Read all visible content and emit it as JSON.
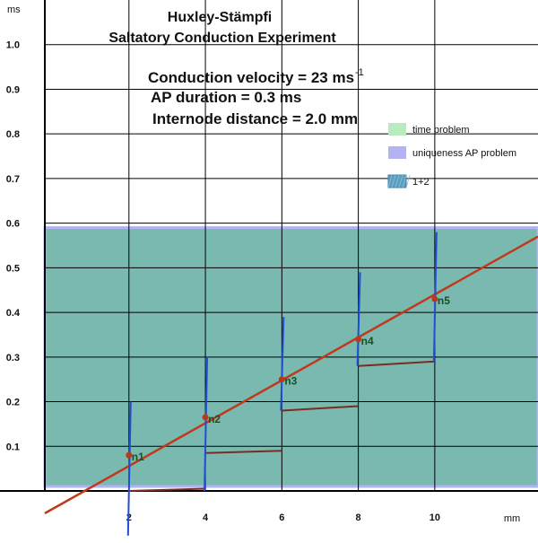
{
  "chart_data": {
    "type": "line",
    "title": "Huxley-Stämpfi",
    "subtitle": "Saltatory Conduction Experiment",
    "annotations": [
      "Conduction velocity = 23 ms",
      "AP duration = 0.3 ms",
      "Internode distance = 2.0 mm"
    ],
    "annotation_superscript": "-1",
    "xlabel": "mm",
    "ylabel": "ms",
    "xlim": [
      -0.2,
      12.7
    ],
    "ylim": [
      0,
      1.1
    ],
    "x_ticks": [
      "2",
      "4",
      "6",
      "8",
      "10"
    ],
    "y_ticks": [
      "0.1",
      "0.2",
      "0.3",
      "0.4",
      "0.5",
      "0.6",
      "0.7",
      "0.8",
      "0.9",
      "1.0"
    ],
    "grid": true,
    "legend_position": "top-right",
    "legend": [
      {
        "label": "time problem",
        "color": "#b8ecbf"
      },
      {
        "label": "uniqueness AP problem",
        "color": "#b3b3f3"
      },
      {
        "label": "1+2",
        "color": "#5b9fc0"
      }
    ],
    "shaded_region": {
      "x": [
        -0.2,
        12.7
      ],
      "y": [
        0.01,
        0.59
      ],
      "color": "#7ab9b0",
      "border": "#b3b3f3"
    },
    "conduction_line": {
      "x": [
        -0.2,
        12.7
      ],
      "y": [
        -0.05,
        0.57
      ],
      "color": "#c0391b"
    },
    "nodes": [
      {
        "label": "n1",
        "x": 2,
        "y": 0.08
      },
      {
        "label": "n2",
        "x": 4,
        "y": 0.165
      },
      {
        "label": "n3",
        "x": 6,
        "y": 0.25
      },
      {
        "label": "n4",
        "x": 8,
        "y": 0.34
      },
      {
        "label": "n5",
        "x": 10,
        "y": 0.43
      }
    ],
    "vertical_spikes": [
      {
        "x": 2,
        "y": [
          -0.1,
          0.2
        ]
      },
      {
        "x": 4,
        "y": [
          0.0,
          0.3
        ]
      },
      {
        "x": 6,
        "y": [
          0.18,
          0.39
        ]
      },
      {
        "x": 8,
        "y": [
          0.28,
          0.49
        ]
      },
      {
        "x": 10,
        "y": [
          0.29,
          0.58
        ]
      }
    ],
    "spike_color": "#1f4fd6",
    "internode_segments": [
      {
        "x": [
          2,
          4
        ],
        "y": [
          0.0,
          0.005
        ]
      },
      {
        "x": [
          4,
          6
        ],
        "y": [
          0.085,
          0.09
        ]
      },
      {
        "x": [
          6,
          8
        ],
        "y": [
          0.18,
          0.19
        ]
      },
      {
        "x": [
          8,
          10
        ],
        "y": [
          0.28,
          0.29
        ]
      }
    ],
    "segment_color": "#7a2b22"
  }
}
